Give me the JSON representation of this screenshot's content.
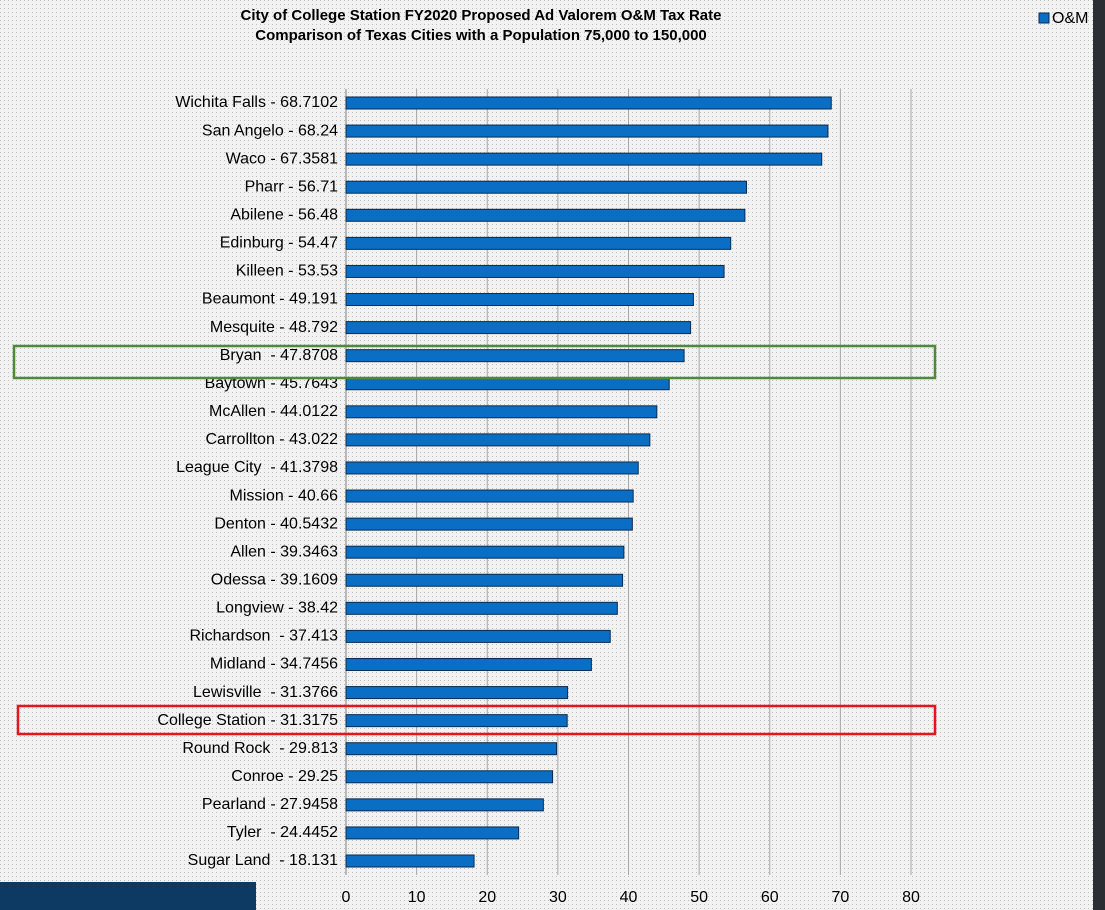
{
  "chart_data": {
    "type": "bar",
    "orientation": "horizontal",
    "title": "City of College Station FY2020 Proposed Ad Valorem O&M Tax Rate",
    "subtitle": "Comparison of Texas Cities with a Population 75,000 to 150,000",
    "categories": [
      "Wichita Falls - 68.7102",
      "San Angelo - 68.24",
      "Waco - 67.3581",
      "Pharr - 56.71",
      "Abilene - 56.48",
      "Edinburg - 54.47",
      "Killeen - 53.53",
      "Beaumont - 49.191",
      "Mesquite - 48.792",
      "Bryan  - 47.8708",
      "Baytown - 45.7643",
      "McAllen - 44.0122",
      "Carrollton - 43.022",
      "League City  - 41.3798",
      "Mission - 40.66",
      "Denton - 40.5432",
      "Allen - 39.3463",
      "Odessa - 39.1609",
      "Longview - 38.42",
      "Richardson  - 37.413",
      "Midland - 34.7456",
      "Lewisville  - 31.3766",
      "College Station - 31.3175",
      "Round Rock  - 29.813",
      "Conroe - 29.25",
      "Pearland - 27.9458",
      "Tyler  - 24.4452",
      "Sugar Land  - 18.131"
    ],
    "series": [
      {
        "name": "O&M",
        "color": "#0a6ec4",
        "values": [
          68.7102,
          68.24,
          67.3581,
          56.71,
          56.48,
          54.47,
          53.53,
          49.191,
          48.792,
          47.8708,
          45.7643,
          44.0122,
          43.022,
          41.3798,
          40.66,
          40.5432,
          39.3463,
          39.1609,
          38.42,
          37.413,
          34.7456,
          31.3766,
          31.3175,
          29.813,
          29.25,
          27.9458,
          24.4452,
          18.131
        ]
      }
    ],
    "xlim": [
      0,
      80
    ],
    "xticks": [
      0,
      10,
      20,
      30,
      40,
      50,
      60,
      70,
      80
    ],
    "grid": true,
    "legend": "top-right"
  }
}
